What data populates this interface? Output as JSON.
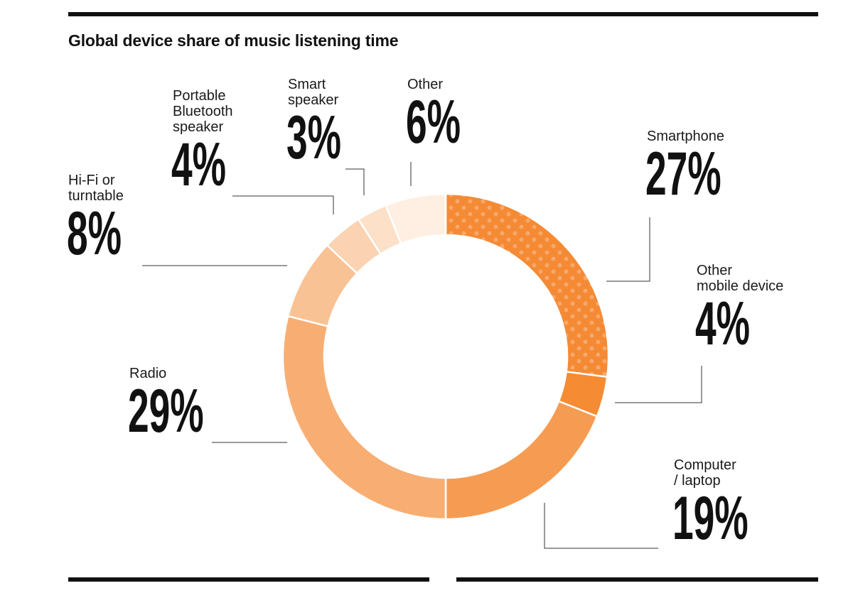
{
  "title": "Global device share of music listening time",
  "chart_data": {
    "type": "pie",
    "title": "Global device share of music listening time",
    "slices": [
      {
        "label": "Smartphone",
        "value": 27,
        "value_label": "27%",
        "color": "#f58a35",
        "pattern": "dots"
      },
      {
        "label": "Other mobile device",
        "value": 4,
        "value_label": "4%",
        "color": "#f58b32"
      },
      {
        "label": "Computer / laptop",
        "value": 19,
        "value_label": "19%",
        "color": "#f69c52"
      },
      {
        "label": "Radio",
        "value": 29,
        "value_label": "29%",
        "color": "#f8ae72"
      },
      {
        "label": "Hi-Fi or turntable",
        "value": 8,
        "value_label": "8%",
        "color": "#f9c294"
      },
      {
        "label": "Portable Bluetooth speaker",
        "value": 4,
        "value_label": "4%",
        "color": "#fbd3b3"
      },
      {
        "label": "Smart speaker",
        "value": 3,
        "value_label": "3%",
        "color": "#fde0c8"
      },
      {
        "label": "Other",
        "value": 6,
        "value_label": "6%",
        "color": "#feefe2"
      }
    ],
    "start_angle_deg": 0,
    "direction": "clockwise",
    "style": "donut"
  }
}
